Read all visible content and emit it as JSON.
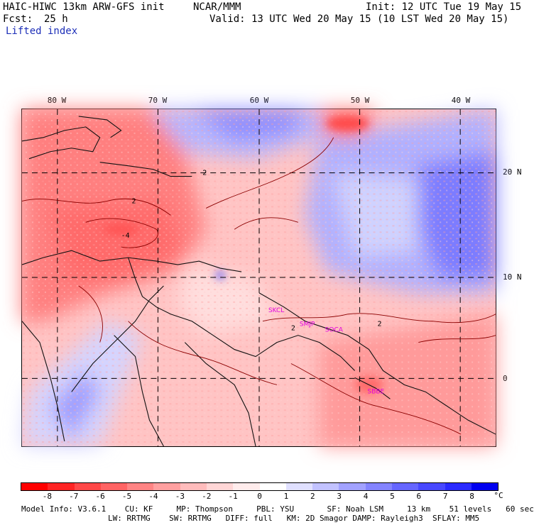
{
  "header": {
    "model": "HAIC-HIWC 13km ARW-GFS init",
    "agency": "NCAR/MMM",
    "init": "Init: 12 UTC Tue 19 May 15",
    "fcst_label": "Fcst:",
    "fcst_value": "25 h",
    "valid": "Valid: 13 UTC Wed 20 May 15 (10 LST Wed 20 May 15)",
    "field": "Lifted index"
  },
  "map": {
    "lon_labels": [
      "80 W",
      "70 W",
      "60 W",
      "50 W",
      "40 W"
    ],
    "lat_labels": [
      "20 N",
      "10 N",
      "0"
    ],
    "contour_labels": [
      "2",
      "2",
      "2",
      "2",
      "-4"
    ],
    "stations": [
      "SKCL",
      "SMJP",
      "SOCA",
      "SBBE"
    ],
    "station_color": "#e000e0",
    "contour_color": "#8b0000"
  },
  "colorbar": {
    "ticks": [
      "-8",
      "-7",
      "-6",
      "-5",
      "-4",
      "-3",
      "-2",
      "-1",
      "0",
      "1",
      "2",
      "3",
      "4",
      "5",
      "6",
      "7",
      "8"
    ],
    "unit": "°C",
    "colors": [
      "#ff0000",
      "#ff2424",
      "#ff4848",
      "#ff6464",
      "#ff8484",
      "#ffa0a0",
      "#ffbcbc",
      "#ffd6d6",
      "#ffecec",
      "#ffffff",
      "#e0e0ff",
      "#c2c2ff",
      "#a2a2ff",
      "#8484ff",
      "#6666ff",
      "#4848ff",
      "#2a2aff",
      "#0000f0"
    ]
  },
  "footer": {
    "line1": "Model Info: V3.6.1    CU: KF     MP: Thompson     PBL: YSU       SF: Noah LSM     13 km    51 levels   60 sec",
    "line2": "LW: RRTMG    SW: RRTMG   DIFF: full   KM: 2D Smagor DAMP: Rayleigh3  SFLAY: MM5"
  }
}
